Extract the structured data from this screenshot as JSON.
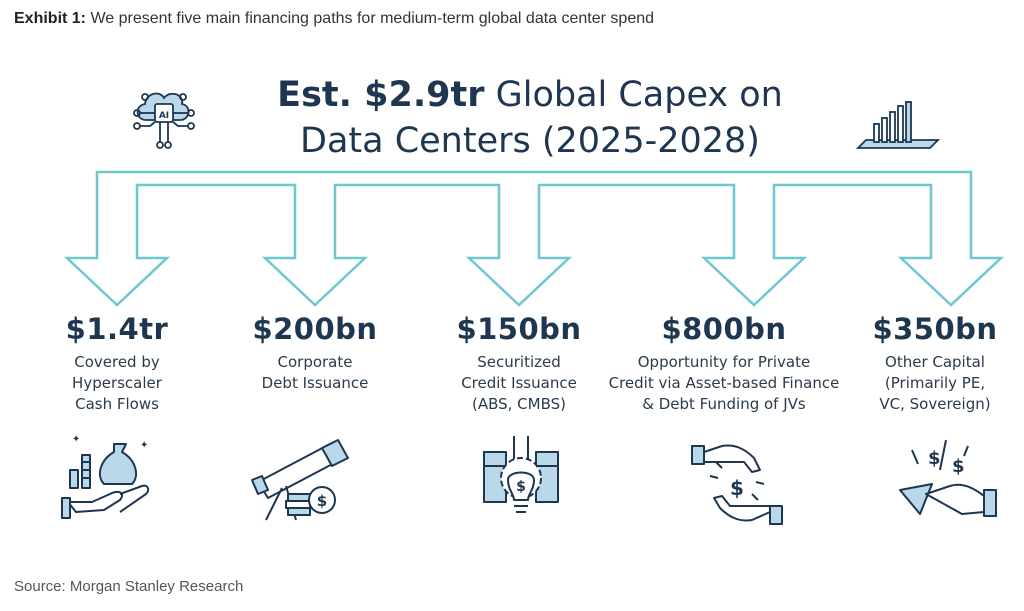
{
  "header": {
    "exhibit_label": "Exhibit 1:",
    "exhibit_text": " We present five main financing paths for medium-term global data center spend"
  },
  "title": {
    "bold_part": "Est. $2.9tr",
    "rest_line1": " Global Capex on",
    "line2": "Data Centers (2025-2028)"
  },
  "paths": [
    {
      "amount": "$1.4tr",
      "description": "Covered by\nHyperscaler\nCash Flows",
      "icon": "money-bag-hand-icon"
    },
    {
      "amount": "$200bn",
      "description": "Corporate\nDebt Issuance",
      "icon": "telescope-coin-icon"
    },
    {
      "amount": "$150bn",
      "description": "Securitized\nCredit Issuance\n(ABS, CMBS)",
      "icon": "lightbulb-gear-icon"
    },
    {
      "amount": "$800bn",
      "description": "Opportunity for Private\nCredit via Asset-based Finance\n& Debt Funding of JVs",
      "icon": "hands-exchange-dollar-icon"
    },
    {
      "amount": "$350bn",
      "description": "Other Capital\n(Primarily PE,\nVC, Sovereign)",
      "icon": "hand-reaching-dollars-icon"
    }
  ],
  "colors": {
    "arrow": "#6fc7cf",
    "text": "#1e3650",
    "icon_fill": "#b9d8ea"
  },
  "footer": {
    "source": "Source: Morgan Stanley Research"
  }
}
